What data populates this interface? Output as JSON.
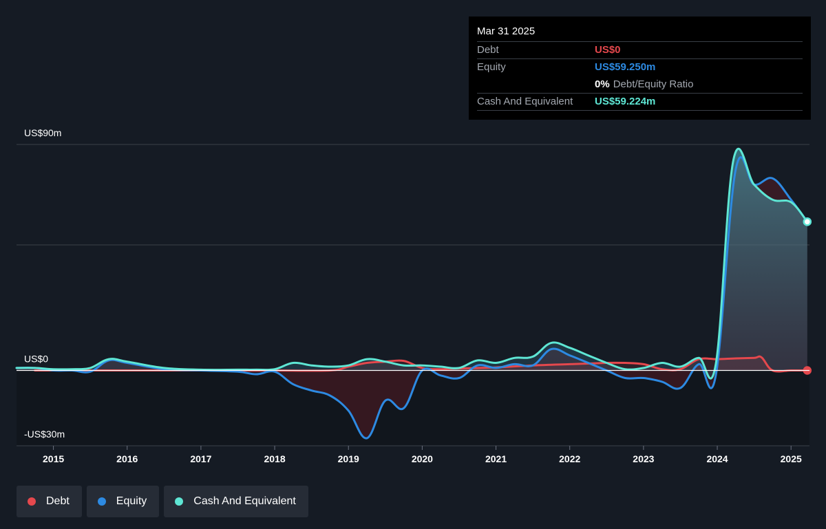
{
  "tooltip": {
    "date": "Mar 31 2025",
    "debt_label": "Debt",
    "debt_value": "US$0",
    "equity_label": "Equity",
    "equity_value": "US$59.250m",
    "ratio_value": "0%",
    "ratio_label": "Debt/Equity Ratio",
    "cash_label": "Cash And Equivalent",
    "cash_value": "US$59.224m"
  },
  "legend": [
    {
      "label": "Debt",
      "color": "#e5484d"
    },
    {
      "label": "Equity",
      "color": "#2d8ae2"
    },
    {
      "label": "Cash And Equivalent",
      "color": "#5ee6d4"
    }
  ],
  "chart_data": {
    "type": "area",
    "title": "",
    "xlabel": "",
    "ylabel": "",
    "ylim": [
      -30,
      90
    ],
    "xlim": [
      2014.5,
      2025.25
    ],
    "y_tick_labels": [
      {
        "value": 90,
        "label": "US$90m"
      },
      {
        "value": 0,
        "label": "US$0"
      },
      {
        "value": -30,
        "label": "-US$30m"
      }
    ],
    "gridlines": [
      90,
      50,
      0
    ],
    "x_ticks": [
      2015,
      2016,
      2017,
      2018,
      2019,
      2020,
      2021,
      2022,
      2023,
      2024,
      2025
    ],
    "x_tick_labels": [
      "2015",
      "2016",
      "2017",
      "2018",
      "2019",
      "2020",
      "2021",
      "2022",
      "2023",
      "2024",
      "2025"
    ],
    "series": [
      {
        "name": "Debt",
        "color": "#e5484d",
        "points": [
          [
            2014.75,
            0
          ],
          [
            2015.5,
            0
          ],
          [
            2016.5,
            0
          ],
          [
            2017.5,
            0
          ],
          [
            2018.0,
            0
          ],
          [
            2018.75,
            0
          ],
          [
            2019.0,
            1.5
          ],
          [
            2019.25,
            3
          ],
          [
            2019.5,
            3.5
          ],
          [
            2019.75,
            3.8
          ],
          [
            2020.0,
            1.0
          ],
          [
            2020.25,
            0.5
          ],
          [
            2020.5,
            0.8
          ],
          [
            2021.0,
            1.2
          ],
          [
            2021.5,
            2.0
          ],
          [
            2022.0,
            2.5
          ],
          [
            2022.5,
            3.0
          ],
          [
            2022.75,
            3.0
          ],
          [
            2023.0,
            2.5
          ],
          [
            2023.25,
            0.5
          ],
          [
            2023.5,
            0.5
          ],
          [
            2023.75,
            4.5
          ],
          [
            2024.0,
            4.5
          ],
          [
            2024.25,
            4.8
          ],
          [
            2024.5,
            5.0
          ],
          [
            2024.6,
            5.2
          ],
          [
            2024.75,
            0
          ],
          [
            2025.0,
            0
          ],
          [
            2025.22,
            0
          ]
        ]
      },
      {
        "name": "Equity",
        "color": "#2d8ae2",
        "points": [
          [
            2014.5,
            1.0
          ],
          [
            2014.75,
            1.0
          ],
          [
            2015.0,
            0
          ],
          [
            2015.25,
            0
          ],
          [
            2015.5,
            -0.5
          ],
          [
            2015.75,
            4.0
          ],
          [
            2016.0,
            3.0
          ],
          [
            2016.5,
            0.5
          ],
          [
            2017.0,
            0
          ],
          [
            2017.5,
            -0.5
          ],
          [
            2017.75,
            -1.5
          ],
          [
            2018.0,
            -0.5
          ],
          [
            2018.25,
            -5.5
          ],
          [
            2018.5,
            -8.0
          ],
          [
            2018.75,
            -10.0
          ],
          [
            2019.0,
            -16.0
          ],
          [
            2019.25,
            -27.0
          ],
          [
            2019.5,
            -12.0
          ],
          [
            2019.75,
            -15.0
          ],
          [
            2020.0,
            0
          ],
          [
            2020.25,
            -2.0
          ],
          [
            2020.5,
            -3.0
          ],
          [
            2020.75,
            2.0
          ],
          [
            2021.0,
            1.0
          ],
          [
            2021.25,
            2.5
          ],
          [
            2021.5,
            2.0
          ],
          [
            2021.75,
            8.5
          ],
          [
            2022.0,
            6.0
          ],
          [
            2022.25,
            3.0
          ],
          [
            2022.5,
            0
          ],
          [
            2022.75,
            -3.0
          ],
          [
            2023.0,
            -3.0
          ],
          [
            2023.25,
            -4.5
          ],
          [
            2023.5,
            -7.0
          ],
          [
            2023.75,
            2.5
          ],
          [
            2023.98,
            -2.0
          ],
          [
            2024.25,
            80.0
          ],
          [
            2024.5,
            74.0
          ],
          [
            2024.75,
            76.5
          ],
          [
            2025.0,
            68.0
          ],
          [
            2025.22,
            59.25
          ]
        ]
      },
      {
        "name": "Cash And Equivalent",
        "color": "#5ee6d4",
        "points": [
          [
            2014.5,
            1.0
          ],
          [
            2014.75,
            1.0
          ],
          [
            2015.0,
            0.5
          ],
          [
            2015.25,
            0.5
          ],
          [
            2015.5,
            1.0
          ],
          [
            2015.75,
            4.5
          ],
          [
            2016.0,
            3.5
          ],
          [
            2016.5,
            1.0
          ],
          [
            2017.0,
            0.3
          ],
          [
            2017.5,
            0.3
          ],
          [
            2017.75,
            0.3
          ],
          [
            2018.0,
            0.5
          ],
          [
            2018.25,
            3.0
          ],
          [
            2018.5,
            2.0
          ],
          [
            2018.75,
            1.5
          ],
          [
            2019.0,
            2.0
          ],
          [
            2019.25,
            4.5
          ],
          [
            2019.5,
            3.5
          ],
          [
            2019.75,
            2.0
          ],
          [
            2020.0,
            2.0
          ],
          [
            2020.25,
            1.5
          ],
          [
            2020.5,
            1.0
          ],
          [
            2020.75,
            4.0
          ],
          [
            2021.0,
            3.0
          ],
          [
            2021.25,
            5.0
          ],
          [
            2021.5,
            5.5
          ],
          [
            2021.75,
            11.0
          ],
          [
            2022.0,
            9.0
          ],
          [
            2022.25,
            6.0
          ],
          [
            2022.5,
            3.0
          ],
          [
            2022.75,
            0.5
          ],
          [
            2023.0,
            1.0
          ],
          [
            2023.25,
            3.0
          ],
          [
            2023.5,
            1.5
          ],
          [
            2023.75,
            5.0
          ],
          [
            2023.98,
            2.5
          ],
          [
            2024.22,
            84.0
          ],
          [
            2024.5,
            74.0
          ],
          [
            2024.75,
            68.0
          ],
          [
            2025.0,
            67.0
          ],
          [
            2025.22,
            59.224
          ]
        ]
      }
    ]
  }
}
